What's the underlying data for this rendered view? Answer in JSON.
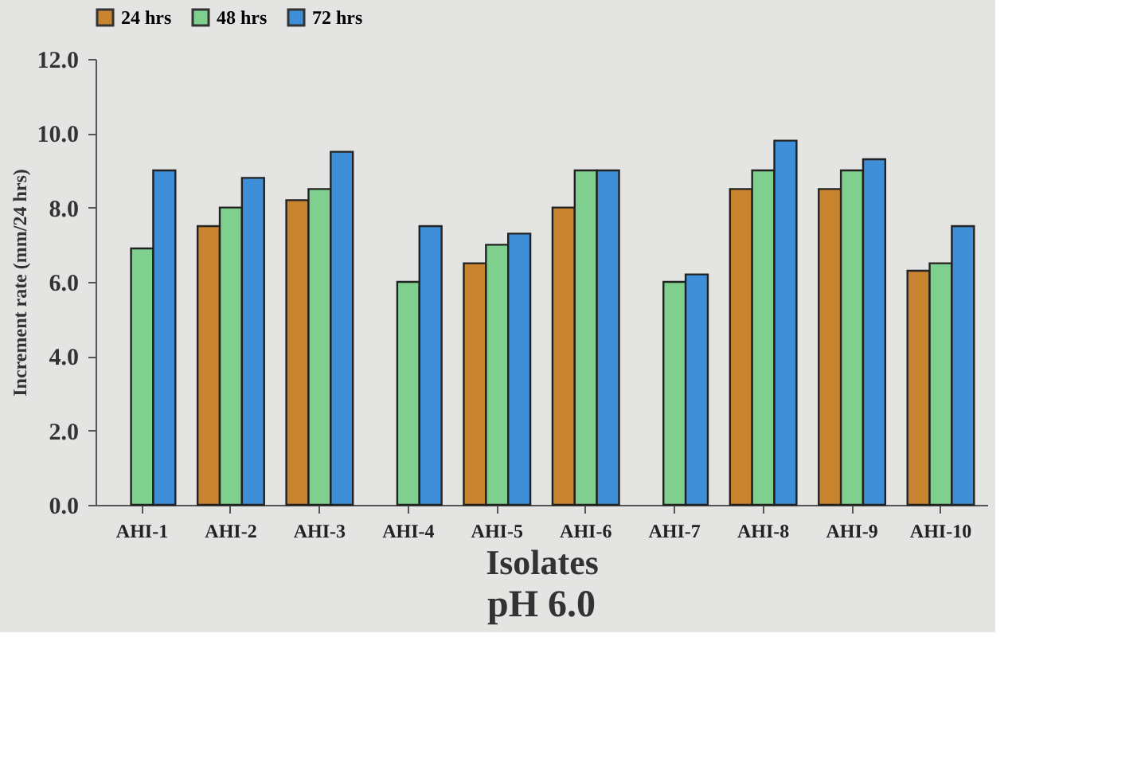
{
  "chart_data": {
    "type": "bar",
    "title": "pH 6.0",
    "xlabel": "Isolates",
    "ylabel": "Increment rate (mm/24 hrs)",
    "categories": [
      "AHI-1",
      "AHI-2",
      "AHI-3",
      "AHI-4",
      "AHI-5",
      "AHI-6",
      "AHI-7",
      "AHI-8",
      "AHI-9",
      "AHI-10"
    ],
    "series": [
      {
        "name": "24 hrs",
        "color": "#c8842e",
        "values": [
          null,
          7.5,
          8.2,
          null,
          6.5,
          8.0,
          null,
          8.5,
          8.5,
          6.3
        ]
      },
      {
        "name": "48 hrs",
        "color": "#7fd08e",
        "values": [
          6.9,
          8.0,
          8.5,
          6.0,
          7.0,
          9.0,
          6.0,
          9.0,
          9.0,
          6.5
        ]
      },
      {
        "name": "72 hrs",
        "color": "#3f8fd8",
        "values": [
          9.0,
          8.8,
          9.5,
          7.5,
          7.3,
          9.0,
          6.2,
          9.8,
          9.3,
          7.5
        ]
      }
    ],
    "ylim": [
      0,
      12
    ],
    "yticks": [
      {
        "value": 0,
        "label": "0.0"
      },
      {
        "value": 2,
        "label": "2.0"
      },
      {
        "value": 4,
        "label": "4.0"
      },
      {
        "value": 6,
        "label": "6.0"
      },
      {
        "value": 8,
        "label": "8.0"
      },
      {
        "value": 10,
        "label": "10.0"
      },
      {
        "value": 12,
        "label": "12.0"
      }
    ],
    "grid": false,
    "legend": "top"
  }
}
